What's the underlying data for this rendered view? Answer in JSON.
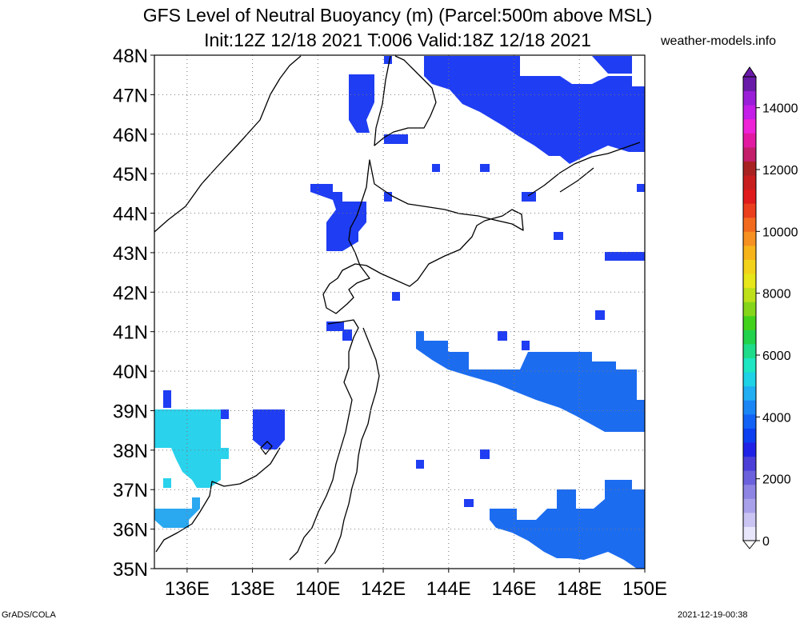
{
  "title_line1": "GFS Level of Neutral Buoyancy (m) (Parcel:500m above MSL)",
  "title_line2": "Init:12Z 12/18 2021 T:006 Valid:18Z 12/18 2021",
  "brand": "weather-models.info",
  "footer_left": "GrADS/COLA",
  "footer_right": "2021-12-19-00:38",
  "map": {
    "lon_range": [
      135,
      150
    ],
    "lat_range": [
      35,
      48
    ],
    "lat_labels": [
      "35N",
      "36N",
      "37N",
      "38N",
      "39N",
      "40N",
      "41N",
      "42N",
      "43N",
      "44N",
      "45N",
      "46N",
      "47N",
      "48N"
    ],
    "lon_labels": [
      "136E",
      "138E",
      "140E",
      "142E",
      "144E",
      "146E",
      "148E",
      "150E"
    ],
    "grid": "dotted"
  },
  "colorbar": {
    "labels": [
      "0",
      "2000",
      "4000",
      "6000",
      "8000",
      "10000",
      "12000",
      "14000"
    ],
    "colors": [
      "#e8e6fa",
      "#c9c4f2",
      "#a9a2ea",
      "#8d84e3",
      "#6b61dc",
      "#4b3fd8",
      "#1f22e6",
      "#0b3ff0",
      "#1262f6",
      "#1a86f6",
      "#22aef2",
      "#1fd2e6",
      "#1ee6c2",
      "#1fdc8a",
      "#21d24a",
      "#43d21c",
      "#85d61a",
      "#bde01a",
      "#e6e61a",
      "#f2d21a",
      "#f6b41a",
      "#f69020",
      "#f26a1e",
      "#ea3e1c",
      "#e01a1a",
      "#c81e1e",
      "#a82222",
      "#c21e6a",
      "#e21aa2",
      "#ee22d6",
      "#c41ee8",
      "#9a1ed8",
      "#6a1aa8"
    ]
  },
  "colors": {
    "blue": "#1f3df2",
    "midblue": "#1c6cf0",
    "lightblue": "#2aa8f0",
    "cyan": "#2ad2ec"
  }
}
